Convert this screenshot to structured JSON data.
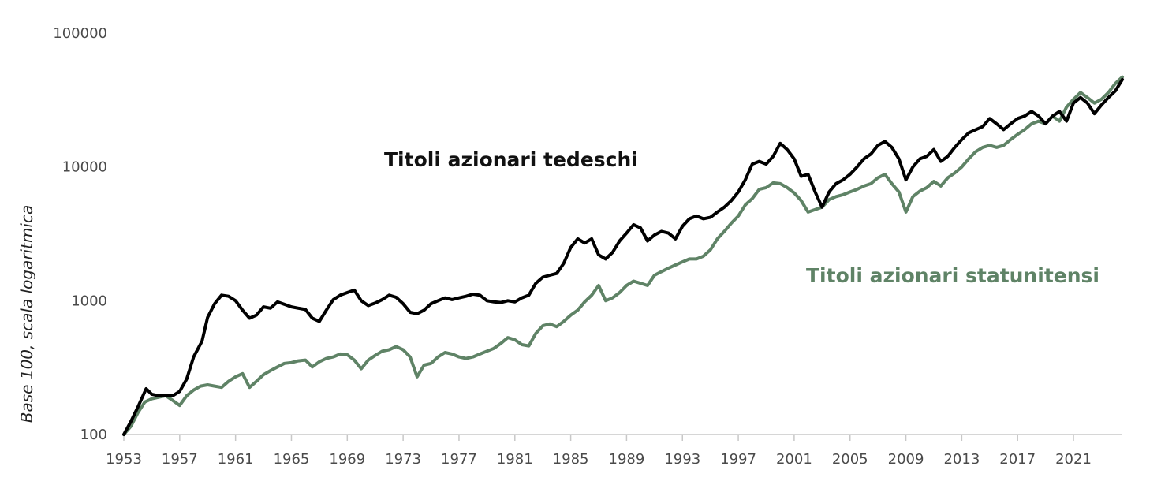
{
  "colors": {
    "german": "#000000",
    "us": "#5f8366",
    "axis": "#c8c8c8",
    "text": "#4a4a4a"
  },
  "chart_data": {
    "type": "line",
    "title": "",
    "xlabel": "",
    "ylabel": "Base 100, scala logaritmica",
    "yscale": "log",
    "ylim": [
      100,
      100000
    ],
    "xlim": [
      1953,
      2024.5
    ],
    "grid": false,
    "legend": "inline labels",
    "x_ticks": [
      "1953",
      "1957",
      "1961",
      "1965",
      "1969",
      "1973",
      "1977",
      "1981",
      "1985",
      "1989",
      "1993",
      "1997",
      "2001",
      "2005",
      "2009",
      "2013",
      "2017",
      "2021"
    ],
    "y_ticks": [
      "100",
      "1000",
      "10000",
      "100000"
    ],
    "annotations": [
      {
        "id": "german",
        "text": "Titoli azionari tedeschi"
      },
      {
        "id": "us",
        "text": "Titoli azionari statunitensi"
      }
    ],
    "series": [
      {
        "id": "german",
        "name": "Titoli azionari tedeschi",
        "color": "#000000",
        "points": [
          [
            1953.0,
            100
          ],
          [
            1953.5,
            125
          ],
          [
            1954.0,
            160
          ],
          [
            1954.6,
            220
          ],
          [
            1955.0,
            200
          ],
          [
            1955.5,
            195
          ],
          [
            1956.0,
            195
          ],
          [
            1956.5,
            195
          ],
          [
            1957.0,
            210
          ],
          [
            1957.5,
            260
          ],
          [
            1958.0,
            380
          ],
          [
            1958.6,
            500
          ],
          [
            1959.0,
            750
          ],
          [
            1959.5,
            950
          ],
          [
            1960.0,
            1100
          ],
          [
            1960.5,
            1080
          ],
          [
            1961.0,
            1000
          ],
          [
            1961.5,
            850
          ],
          [
            1962.0,
            740
          ],
          [
            1962.5,
            780
          ],
          [
            1963.0,
            900
          ],
          [
            1963.5,
            880
          ],
          [
            1964.0,
            980
          ],
          [
            1964.5,
            940
          ],
          [
            1965.0,
            900
          ],
          [
            1965.5,
            880
          ],
          [
            1966.0,
            860
          ],
          [
            1966.5,
            740
          ],
          [
            1967.0,
            700
          ],
          [
            1967.5,
            850
          ],
          [
            1968.0,
            1020
          ],
          [
            1968.5,
            1100
          ],
          [
            1969.0,
            1150
          ],
          [
            1969.5,
            1200
          ],
          [
            1970.0,
            1000
          ],
          [
            1970.5,
            920
          ],
          [
            1971.0,
            960
          ],
          [
            1971.5,
            1020
          ],
          [
            1972.0,
            1100
          ],
          [
            1972.5,
            1060
          ],
          [
            1973.0,
            950
          ],
          [
            1973.5,
            820
          ],
          [
            1974.0,
            800
          ],
          [
            1974.5,
            850
          ],
          [
            1975.0,
            950
          ],
          [
            1975.5,
            1000
          ],
          [
            1976.0,
            1050
          ],
          [
            1976.5,
            1020
          ],
          [
            1977.0,
            1050
          ],
          [
            1977.5,
            1080
          ],
          [
            1978.0,
            1120
          ],
          [
            1978.5,
            1100
          ],
          [
            1979.0,
            1000
          ],
          [
            1979.5,
            980
          ],
          [
            1980.0,
            970
          ],
          [
            1980.5,
            1000
          ],
          [
            1981.0,
            980
          ],
          [
            1981.5,
            1050
          ],
          [
            1982.0,
            1100
          ],
          [
            1982.5,
            1350
          ],
          [
            1983.0,
            1500
          ],
          [
            1983.5,
            1550
          ],
          [
            1984.0,
            1600
          ],
          [
            1984.5,
            1900
          ],
          [
            1985.0,
            2500
          ],
          [
            1985.5,
            2900
          ],
          [
            1986.0,
            2700
          ],
          [
            1986.5,
            2900
          ],
          [
            1987.0,
            2200
          ],
          [
            1987.5,
            2050
          ],
          [
            1988.0,
            2300
          ],
          [
            1988.5,
            2800
          ],
          [
            1989.0,
            3200
          ],
          [
            1989.5,
            3700
          ],
          [
            1990.0,
            3500
          ],
          [
            1990.5,
            2800
          ],
          [
            1991.0,
            3100
          ],
          [
            1991.5,
            3300
          ],
          [
            1992.0,
            3200
          ],
          [
            1992.5,
            2900
          ],
          [
            1993.0,
            3600
          ],
          [
            1993.5,
            4100
          ],
          [
            1994.0,
            4300
          ],
          [
            1994.5,
            4100
          ],
          [
            1995.0,
            4200
          ],
          [
            1995.5,
            4600
          ],
          [
            1996.0,
            5000
          ],
          [
            1996.5,
            5600
          ],
          [
            1997.0,
            6500
          ],
          [
            1997.5,
            8000
          ],
          [
            1998.0,
            10500
          ],
          [
            1998.5,
            11000
          ],
          [
            1999.0,
            10500
          ],
          [
            1999.5,
            12000
          ],
          [
            2000.0,
            15000
          ],
          [
            2000.5,
            13500
          ],
          [
            2001.0,
            11500
          ],
          [
            2001.5,
            8500
          ],
          [
            2002.0,
            8800
          ],
          [
            2002.5,
            6500
          ],
          [
            2003.0,
            5000
          ],
          [
            2003.5,
            6500
          ],
          [
            2004.0,
            7500
          ],
          [
            2004.5,
            8000
          ],
          [
            2005.0,
            8800
          ],
          [
            2005.5,
            10000
          ],
          [
            2006.0,
            11500
          ],
          [
            2006.5,
            12500
          ],
          [
            2007.0,
            14500
          ],
          [
            2007.5,
            15500
          ],
          [
            2008.0,
            14000
          ],
          [
            2008.5,
            11500
          ],
          [
            2009.0,
            8000
          ],
          [
            2009.5,
            10000
          ],
          [
            2010.0,
            11500
          ],
          [
            2010.5,
            12000
          ],
          [
            2011.0,
            13500
          ],
          [
            2011.5,
            11000
          ],
          [
            2012.0,
            12000
          ],
          [
            2012.5,
            14000
          ],
          [
            2013.0,
            16000
          ],
          [
            2013.5,
            18000
          ],
          [
            2014.0,
            19000
          ],
          [
            2014.5,
            20000
          ],
          [
            2015.0,
            23000
          ],
          [
            2015.5,
            21000
          ],
          [
            2016.0,
            19000
          ],
          [
            2016.5,
            21000
          ],
          [
            2017.0,
            23000
          ],
          [
            2017.5,
            24000
          ],
          [
            2018.0,
            26000
          ],
          [
            2018.5,
            24000
          ],
          [
            2019.0,
            21000
          ],
          [
            2019.5,
            24000
          ],
          [
            2020.0,
            26000
          ],
          [
            2020.5,
            22000
          ],
          [
            2021.0,
            30000
          ],
          [
            2021.5,
            33000
          ],
          [
            2022.0,
            30000
          ],
          [
            2022.5,
            25000
          ],
          [
            2023.0,
            29000
          ],
          [
            2023.5,
            33000
          ],
          [
            2024.0,
            37000
          ],
          [
            2024.5,
            45000
          ]
        ]
      },
      {
        "id": "us",
        "name": "Titoli azionari statunitensi",
        "color": "#5f8366",
        "points": [
          [
            1953.0,
            100
          ],
          [
            1953.5,
            115
          ],
          [
            1954.0,
            145
          ],
          [
            1954.5,
            175
          ],
          [
            1955.0,
            185
          ],
          [
            1955.5,
            190
          ],
          [
            1956.0,
            195
          ],
          [
            1956.5,
            180
          ],
          [
            1957.0,
            165
          ],
          [
            1957.5,
            195
          ],
          [
            1958.0,
            215
          ],
          [
            1958.5,
            230
          ],
          [
            1959.0,
            235
          ],
          [
            1959.5,
            230
          ],
          [
            1960.0,
            225
          ],
          [
            1960.5,
            250
          ],
          [
            1961.0,
            270
          ],
          [
            1961.5,
            285
          ],
          [
            1962.0,
            225
          ],
          [
            1962.5,
            250
          ],
          [
            1963.0,
            280
          ],
          [
            1963.5,
            300
          ],
          [
            1964.0,
            320
          ],
          [
            1964.5,
            340
          ],
          [
            1965.0,
            345
          ],
          [
            1965.5,
            355
          ],
          [
            1966.0,
            360
          ],
          [
            1966.5,
            320
          ],
          [
            1967.0,
            350
          ],
          [
            1967.5,
            370
          ],
          [
            1968.0,
            380
          ],
          [
            1968.5,
            400
          ],
          [
            1969.0,
            395
          ],
          [
            1969.5,
            360
          ],
          [
            1970.0,
            310
          ],
          [
            1970.5,
            360
          ],
          [
            1971.0,
            390
          ],
          [
            1971.5,
            420
          ],
          [
            1972.0,
            430
          ],
          [
            1972.5,
            455
          ],
          [
            1973.0,
            430
          ],
          [
            1973.5,
            380
          ],
          [
            1974.0,
            270
          ],
          [
            1974.5,
            330
          ],
          [
            1975.0,
            340
          ],
          [
            1975.5,
            380
          ],
          [
            1976.0,
            410
          ],
          [
            1976.5,
            400
          ],
          [
            1977.0,
            380
          ],
          [
            1977.5,
            370
          ],
          [
            1978.0,
            380
          ],
          [
            1978.5,
            400
          ],
          [
            1979.0,
            420
          ],
          [
            1979.5,
            440
          ],
          [
            1980.0,
            480
          ],
          [
            1980.5,
            530
          ],
          [
            1981.0,
            510
          ],
          [
            1981.5,
            470
          ],
          [
            1982.0,
            460
          ],
          [
            1982.5,
            570
          ],
          [
            1983.0,
            650
          ],
          [
            1983.5,
            670
          ],
          [
            1984.0,
            640
          ],
          [
            1984.5,
            700
          ],
          [
            1985.0,
            780
          ],
          [
            1985.5,
            850
          ],
          [
            1986.0,
            980
          ],
          [
            1986.5,
            1100
          ],
          [
            1987.0,
            1300
          ],
          [
            1987.5,
            1000
          ],
          [
            1988.0,
            1050
          ],
          [
            1988.5,
            1150
          ],
          [
            1989.0,
            1300
          ],
          [
            1989.5,
            1400
          ],
          [
            1990.0,
            1350
          ],
          [
            1990.5,
            1300
          ],
          [
            1991.0,
            1550
          ],
          [
            1991.5,
            1650
          ],
          [
            1992.0,
            1750
          ],
          [
            1992.5,
            1850
          ],
          [
            1993.0,
            1950
          ],
          [
            1993.5,
            2050
          ],
          [
            1994.0,
            2050
          ],
          [
            1994.5,
            2150
          ],
          [
            1995.0,
            2400
          ],
          [
            1995.5,
            2900
          ],
          [
            1996.0,
            3300
          ],
          [
            1996.5,
            3800
          ],
          [
            1997.0,
            4300
          ],
          [
            1997.5,
            5200
          ],
          [
            1998.0,
            5800
          ],
          [
            1998.5,
            6800
          ],
          [
            1999.0,
            7000
          ],
          [
            1999.5,
            7600
          ],
          [
            2000.0,
            7500
          ],
          [
            2000.5,
            7000
          ],
          [
            2001.0,
            6400
          ],
          [
            2001.5,
            5600
          ],
          [
            2002.0,
            4600
          ],
          [
            2002.5,
            4800
          ],
          [
            2003.0,
            5000
          ],
          [
            2003.5,
            5700
          ],
          [
            2004.0,
            6000
          ],
          [
            2004.5,
            6200
          ],
          [
            2005.0,
            6500
          ],
          [
            2005.5,
            6800
          ],
          [
            2006.0,
            7200
          ],
          [
            2006.5,
            7500
          ],
          [
            2007.0,
            8300
          ],
          [
            2007.5,
            8800
          ],
          [
            2008.0,
            7500
          ],
          [
            2008.5,
            6500
          ],
          [
            2009.0,
            4600
          ],
          [
            2009.5,
            6000
          ],
          [
            2010.0,
            6600
          ],
          [
            2010.5,
            7000
          ],
          [
            2011.0,
            7800
          ],
          [
            2011.5,
            7200
          ],
          [
            2012.0,
            8300
          ],
          [
            2012.5,
            9000
          ],
          [
            2013.0,
            10000
          ],
          [
            2013.5,
            11500
          ],
          [
            2014.0,
            13000
          ],
          [
            2014.5,
            14000
          ],
          [
            2015.0,
            14500
          ],
          [
            2015.5,
            14000
          ],
          [
            2016.0,
            14500
          ],
          [
            2016.5,
            16000
          ],
          [
            2017.0,
            17500
          ],
          [
            2017.5,
            19000
          ],
          [
            2018.0,
            21000
          ],
          [
            2018.5,
            22000
          ],
          [
            2019.0,
            21000
          ],
          [
            2019.5,
            24000
          ],
          [
            2020.0,
            22000
          ],
          [
            2020.5,
            28000
          ],
          [
            2021.0,
            32000
          ],
          [
            2021.5,
            36000
          ],
          [
            2022.0,
            33000
          ],
          [
            2022.5,
            30000
          ],
          [
            2023.0,
            32000
          ],
          [
            2023.5,
            36000
          ],
          [
            2024.0,
            42000
          ],
          [
            2024.5,
            47000
          ]
        ]
      }
    ]
  }
}
